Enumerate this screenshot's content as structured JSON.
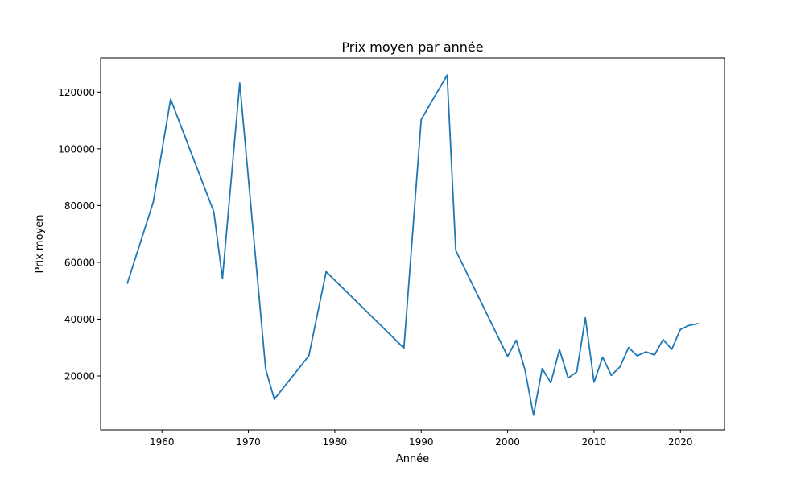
{
  "chart_data": {
    "type": "line",
    "title": "Prix moyen par année",
    "xlabel": "Année",
    "ylabel": "Prix moyen",
    "xlim": [
      1952.9,
      2025.1
    ],
    "ylim": [
      1000,
      132000
    ],
    "x_ticks": [
      1960,
      1970,
      1980,
      1990,
      2000,
      2010,
      2020
    ],
    "y_ticks": [
      20000,
      40000,
      60000,
      80000,
      100000,
      120000
    ],
    "series": [
      {
        "name": "Prix moyen",
        "color": "#1f77b4",
        "x": [
          1956,
          1959,
          1961,
          1966,
          1967,
          1969,
          1972,
          1973,
          1977,
          1979,
          1988,
          1990,
          1993,
          1994,
          2000,
          2001,
          2002,
          2003,
          2004,
          2005,
          2006,
          2007,
          2008,
          2009,
          2010,
          2011,
          2012,
          2013,
          2014,
          2015,
          2016,
          2017,
          2018,
          2019,
          2020,
          2021,
          2022
        ],
        "y": [
          52700,
          81300,
          117500,
          77800,
          54300,
          123200,
          22400,
          11800,
          27100,
          56700,
          29800,
          110300,
          126000,
          64200,
          26900,
          32600,
          22300,
          6200,
          22600,
          17600,
          29300,
          19300,
          21400,
          40500,
          17800,
          26600,
          20200,
          23200,
          30000,
          27100,
          28500,
          27400,
          32800,
          29400,
          36400,
          37800,
          38400
        ]
      }
    ]
  }
}
